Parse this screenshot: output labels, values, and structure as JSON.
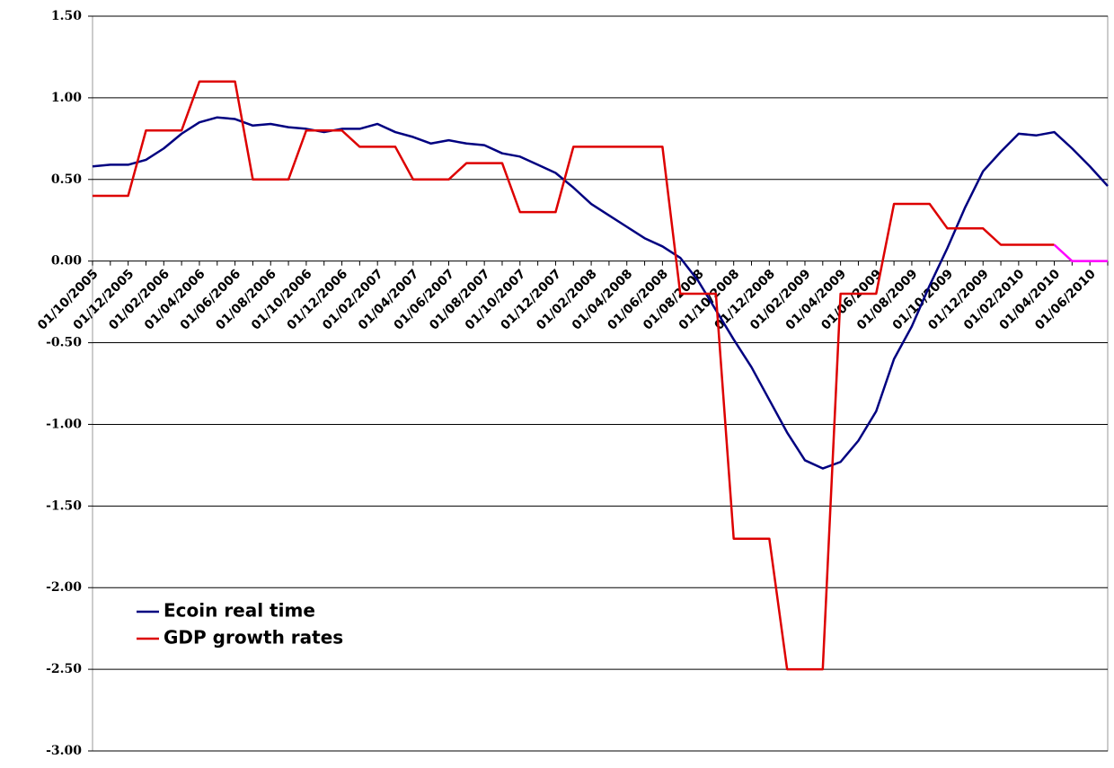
{
  "chart_data": {
    "type": "line",
    "categories": [
      "01/10/2005",
      null,
      "01/12/2005",
      null,
      "01/02/2006",
      null,
      "01/04/2006",
      null,
      "01/06/2006",
      null,
      "01/08/2006",
      null,
      "01/10/2006",
      null,
      "01/12/2006",
      null,
      "01/02/2007",
      null,
      "01/04/2007",
      null,
      "01/06/2007",
      null,
      "01/08/2007",
      null,
      "01/10/2007",
      null,
      "01/12/2007",
      null,
      "01/02/2008",
      null,
      "01/04/2008",
      null,
      "01/06/2008",
      null,
      "01/08/2008",
      null,
      "01/10/2008",
      null,
      "01/12/2008",
      null,
      "01/02/2009",
      null,
      "01/04/2009",
      null,
      "01/06/2009",
      null,
      "01/08/2009",
      null,
      "01/10/2009",
      null,
      "01/12/2009",
      null,
      "01/02/2010",
      null,
      "01/04/2010",
      null,
      "01/06/2010",
      null
    ],
    "series": [
      {
        "name": "Ecoin real time",
        "color": "#000080",
        "values": [
          0.58,
          0.59,
          0.59,
          0.62,
          0.69,
          0.78,
          0.85,
          0.88,
          0.87,
          0.83,
          0.84,
          0.82,
          0.81,
          0.79,
          0.81,
          0.81,
          0.84,
          0.79,
          0.76,
          0.72,
          0.74,
          0.72,
          0.71,
          0.66,
          0.64,
          0.59,
          0.54,
          0.45,
          0.35,
          0.28,
          0.21,
          0.14,
          0.09,
          0.02,
          -0.12,
          -0.3,
          -0.48,
          -0.65,
          -0.85,
          -1.05,
          -1.22,
          -1.27,
          -1.23,
          -1.1,
          -0.92,
          -0.6,
          -0.4,
          -0.15,
          0.08,
          0.33,
          0.55,
          0.67,
          0.78,
          0.77,
          0.79,
          0.69,
          0.58,
          0.46
        ]
      },
      {
        "name": "GDP growth rates",
        "color": "#dd0000",
        "values": [
          0.4,
          0.4,
          0.4,
          0.8,
          0.8,
          0.8,
          1.1,
          1.1,
          1.1,
          0.5,
          0.5,
          0.5,
          0.8,
          0.8,
          0.8,
          0.7,
          0.7,
          0.7,
          0.5,
          0.5,
          0.5,
          0.6,
          0.6,
          0.6,
          0.3,
          0.3,
          0.3,
          0.7,
          0.7,
          0.7,
          0.7,
          0.7,
          0.7,
          -0.2,
          -0.2,
          -0.2,
          -1.7,
          -1.7,
          -1.7,
          -2.5,
          -2.5,
          -2.5,
          -0.2,
          -0.2,
          -0.2,
          0.35,
          0.35,
          0.35,
          0.2,
          0.2,
          0.2,
          0.1,
          0.1,
          0.1,
          0.1,
          null,
          null,
          null
        ]
      },
      {
        "color": "#ff00ff",
        "values": [
          null,
          null,
          null,
          null,
          null,
          null,
          null,
          null,
          null,
          null,
          null,
          null,
          null,
          null,
          null,
          null,
          null,
          null,
          null,
          null,
          null,
          null,
          null,
          null,
          null,
          null,
          null,
          null,
          null,
          null,
          null,
          null,
          null,
          null,
          null,
          null,
          null,
          null,
          null,
          null,
          null,
          null,
          null,
          null,
          null,
          null,
          null,
          null,
          null,
          null,
          null,
          null,
          null,
          null,
          0.1,
          0,
          0,
          0
        ]
      }
    ],
    "ylim": [
      -3,
      1.5
    ],
    "yticks": [
      {
        "value": -3,
        "label": "-3.00"
      },
      {
        "value": -2.5,
        "label": "-2.50"
      },
      {
        "value": -2,
        "label": "-2.00"
      },
      {
        "value": -1.5,
        "label": "-1.50"
      },
      {
        "value": -1,
        "label": "-1.00"
      },
      {
        "value": -0.5,
        "label": "-0.50"
      },
      {
        "value": 0,
        "label": "0.00"
      },
      {
        "value": 0.5,
        "label": "0.50"
      },
      {
        "value": 1,
        "label": "1.00"
      },
      {
        "value": 1.5,
        "label": "1.50"
      }
    ],
    "grid": true,
    "legend": "lower-left"
  }
}
